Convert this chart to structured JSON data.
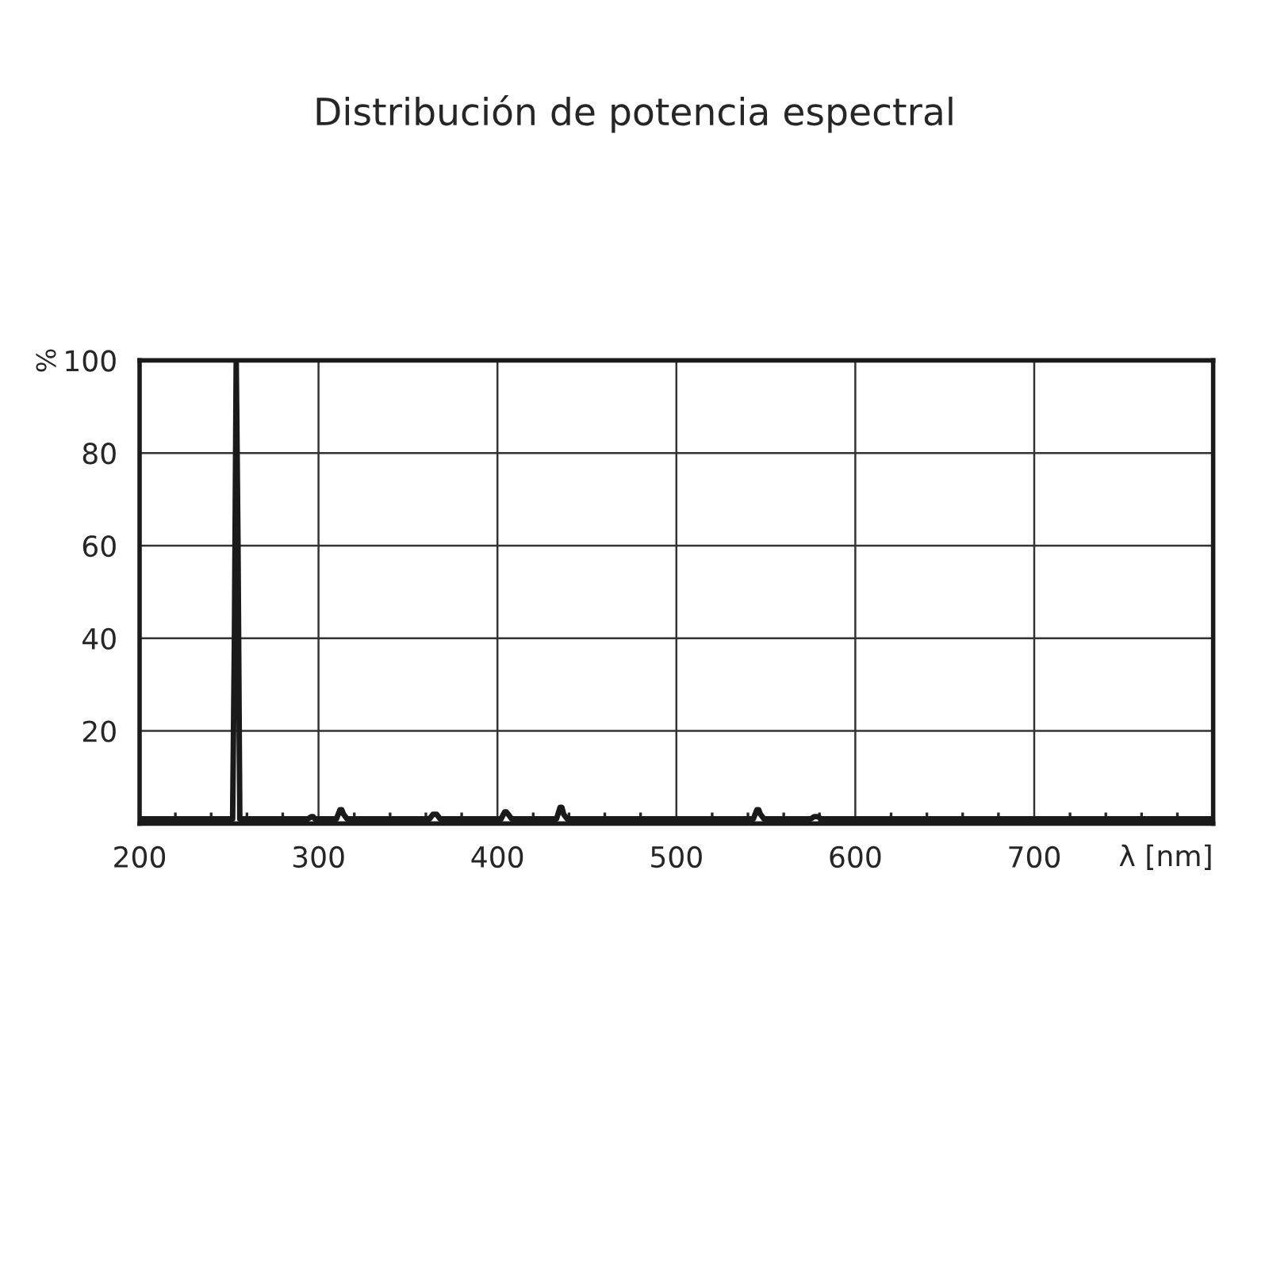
{
  "chart_data": {
    "type": "line",
    "title": "Distribución de potencia espectral",
    "xlabel": "λ [nm]",
    "ylabel": "%",
    "series": [
      {
        "color": "#1a1a1a",
        "x": [
          200,
          252,
          253,
          254,
          255,
          256,
          294,
          296,
          297,
          298,
          310,
          312,
          313,
          314,
          316,
          362,
          364,
          365,
          366,
          368,
          402,
          404,
          405,
          406,
          408,
          433,
          435,
          436,
          437,
          439,
          543,
          545,
          546,
          547,
          549,
          575,
          577,
          578,
          579,
          581,
          800
        ],
        "values": [
          1,
          1,
          40,
          100,
          60,
          1,
          1,
          1.5,
          1.5,
          1,
          1,
          3,
          3,
          2,
          1,
          1,
          2,
          2,
          2,
          1,
          1,
          2.5,
          2.5,
          2,
          1,
          1,
          3.5,
          3.5,
          2,
          1,
          1,
          3,
          3,
          2,
          1,
          1,
          1.5,
          1.5,
          1.5,
          1,
          1
        ]
      }
    ],
    "xlim": [
      200,
      800
    ],
    "ylim": [
      0,
      100
    ],
    "xticks": [
      200,
      300,
      400,
      500,
      600,
      700
    ],
    "yticks": [
      20,
      40,
      60,
      80,
      100
    ],
    "grid": true,
    "legend": false
  }
}
